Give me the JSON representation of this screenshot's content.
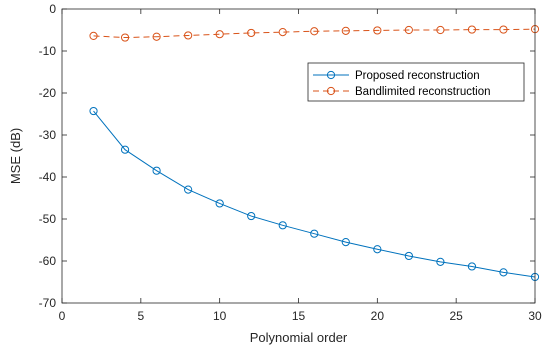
{
  "chart_data": {
    "type": "line",
    "title": "",
    "xlabel": "Polynomial order",
    "ylabel": "MSE (dB)",
    "xlim": [
      0,
      30
    ],
    "ylim": [
      -70,
      0
    ],
    "xticks": [
      0,
      5,
      10,
      15,
      20,
      25,
      30
    ],
    "yticks": [
      0,
      -10,
      -20,
      -30,
      -40,
      -50,
      -60,
      -70
    ],
    "grid": false,
    "legend_position": "top-right",
    "x": [
      2,
      4,
      6,
      8,
      10,
      12,
      14,
      16,
      18,
      20,
      22,
      24,
      26,
      28,
      30
    ],
    "series": [
      {
        "name": "Proposed reconstruction",
        "color": "#0072BD",
        "line_style": "solid",
        "marker": "circle",
        "values": [
          -24.3,
          -33.5,
          -38.5,
          -43.0,
          -46.3,
          -49.3,
          -51.5,
          -53.5,
          -55.5,
          -57.2,
          -58.8,
          -60.2,
          -61.3,
          -62.7,
          -63.8
        ]
      },
      {
        "name": "Bandlimited reconstruction",
        "color": "#D95319",
        "line_style": "dashed",
        "marker": "circle",
        "values": [
          -6.4,
          -6.8,
          -6.6,
          -6.3,
          -6.0,
          -5.7,
          -5.5,
          -5.3,
          -5.2,
          -5.1,
          -5.0,
          -5.0,
          -4.9,
          -4.9,
          -4.8
        ]
      }
    ]
  }
}
